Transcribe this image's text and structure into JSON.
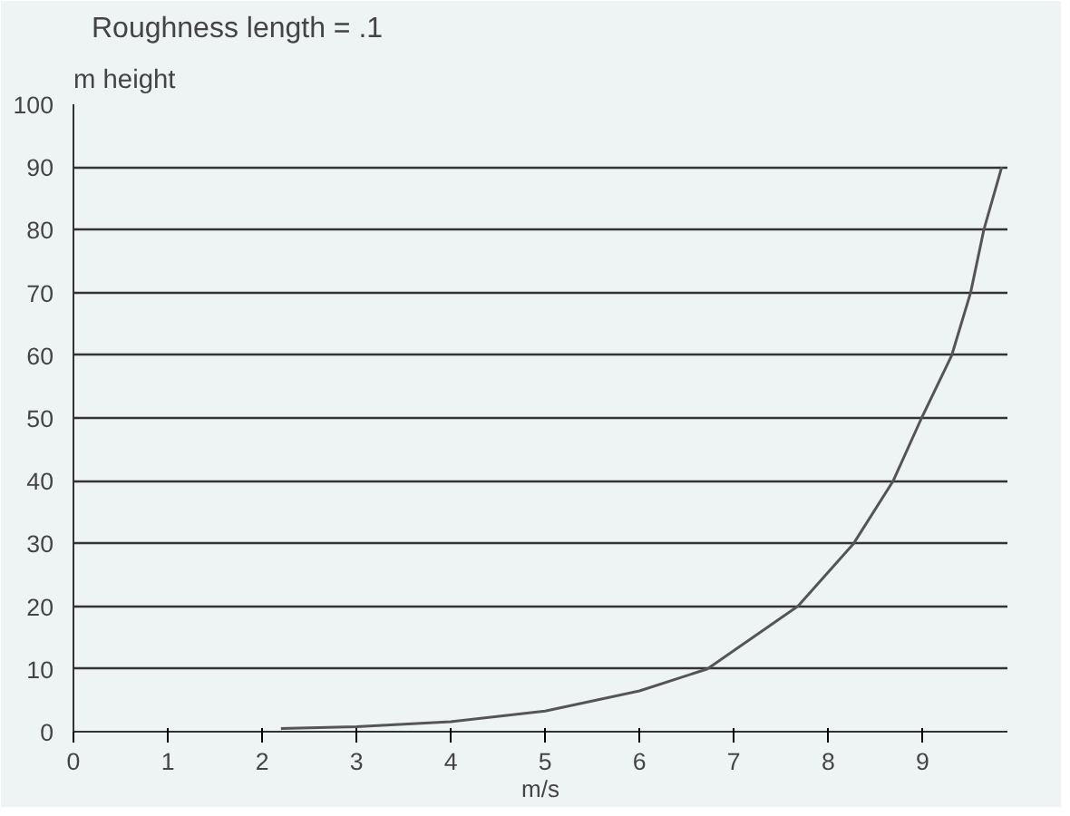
{
  "chart_data": {
    "type": "line",
    "title": "Roughness length = .1",
    "ylabel": "m height",
    "xlabel": "m/s",
    "x": [
      2.2,
      3,
      4,
      5,
      6,
      6.72,
      7.68,
      8.27,
      8.69,
      8.99,
      9.31,
      9.51,
      9.65,
      9.84
    ],
    "series": [
      {
        "color": "#555555",
        "values": [
          0.5,
          0.8,
          1.6,
          3.3,
          6.5,
          10,
          20,
          30,
          40,
          50,
          60,
          70,
          80,
          90
        ]
      }
    ],
    "xlim": [
      0,
      9.9
    ],
    "ylim": [
      0,
      100
    ],
    "xticks": [
      0,
      1,
      2,
      3,
      4,
      5,
      6,
      7,
      8,
      9
    ],
    "yticks": [
      0,
      10,
      20,
      30,
      40,
      50,
      60,
      70,
      80,
      90,
      100
    ],
    "grid": "y",
    "marker": "none",
    "line_style": "solid"
  }
}
